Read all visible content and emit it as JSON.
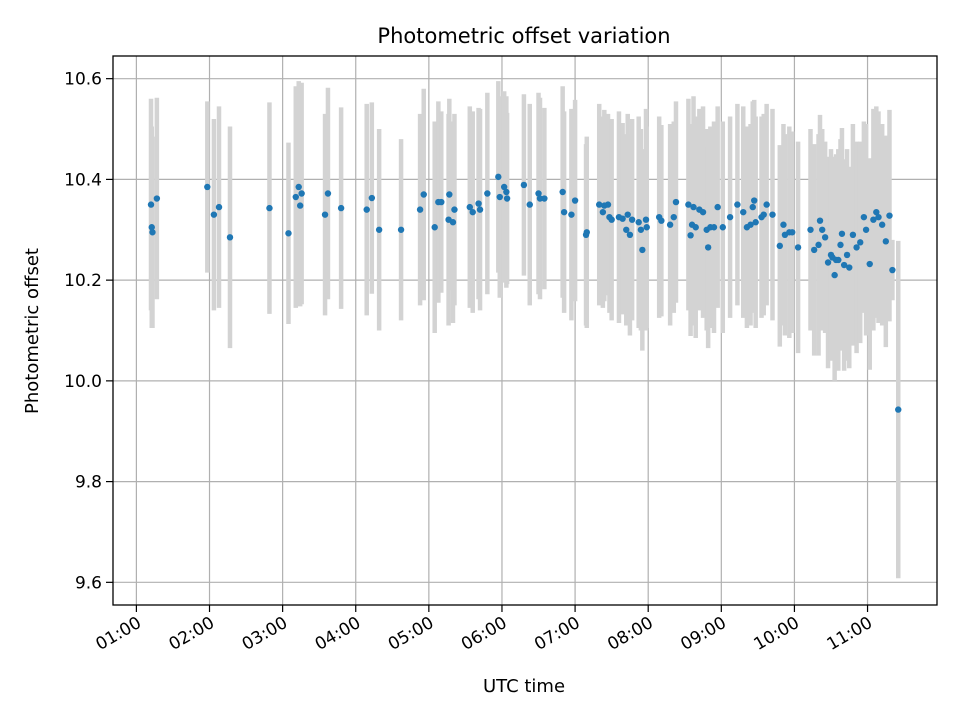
{
  "chart_data": {
    "type": "scatter",
    "title": "Photometric offset variation",
    "xlabel": "UTC time",
    "ylabel": "Photometric offset",
    "xlim": [
      0.68,
      11.95
    ],
    "ylim": [
      9.555,
      10.645
    ],
    "grid": true,
    "x_ticks": [
      {
        "value": 1,
        "label": "01:00"
      },
      {
        "value": 2,
        "label": "02:00"
      },
      {
        "value": 3,
        "label": "03:00"
      },
      {
        "value": 4,
        "label": "04:00"
      },
      {
        "value": 5,
        "label": "05:00"
      },
      {
        "value": 6,
        "label": "06:00"
      },
      {
        "value": 7,
        "label": "07:00"
      },
      {
        "value": 8,
        "label": "08:00"
      },
      {
        "value": 9,
        "label": "09:00"
      },
      {
        "value": 10,
        "label": "10:00"
      },
      {
        "value": 11,
        "label": "11:00"
      }
    ],
    "y_ticks": [
      {
        "value": 9.6,
        "label": "9.6"
      },
      {
        "value": 9.8,
        "label": "9.8"
      },
      {
        "value": 10.0,
        "label": "10.0"
      },
      {
        "value": 10.2,
        "label": "10.2"
      },
      {
        "value": 10.4,
        "label": "10.4"
      },
      {
        "value": 10.6,
        "label": "10.6"
      }
    ],
    "colors": {
      "points": "#1f77b4",
      "errorbars": "#d3d3d3",
      "grid": "#b0b0b0",
      "axes": "#000000"
    },
    "series": [
      {
        "name": "offset",
        "points": [
          [
            1.2,
            10.35,
            0.21
          ],
          [
            1.21,
            10.305,
            0.2
          ],
          [
            1.22,
            10.295,
            0.19
          ],
          [
            1.28,
            10.362,
            0.2
          ],
          [
            1.97,
            10.385,
            0.17
          ],
          [
            2.06,
            10.33,
            0.19
          ],
          [
            2.13,
            10.345,
            0.2
          ],
          [
            2.28,
            10.285,
            0.22
          ],
          [
            2.82,
            10.343,
            0.21
          ],
          [
            3.08,
            10.293,
            0.18
          ],
          [
            3.18,
            10.365,
            0.22
          ],
          [
            3.22,
            10.385,
            0.21
          ],
          [
            3.24,
            10.348,
            0.2
          ],
          [
            3.26,
            10.372,
            0.22
          ],
          [
            3.58,
            10.33,
            0.2
          ],
          [
            3.62,
            10.372,
            0.21
          ],
          [
            3.8,
            10.343,
            0.2
          ],
          [
            4.15,
            10.34,
            0.21
          ],
          [
            4.22,
            10.363,
            0.19
          ],
          [
            4.32,
            10.3,
            0.2
          ],
          [
            4.62,
            10.3,
            0.18
          ],
          [
            4.88,
            10.34,
            0.19
          ],
          [
            4.93,
            10.37,
            0.21
          ],
          [
            5.08,
            10.305,
            0.21
          ],
          [
            5.13,
            10.355,
            0.2
          ],
          [
            5.17,
            10.355,
            0.18
          ],
          [
            5.27,
            10.32,
            0.21
          ],
          [
            5.28,
            10.37,
            0.19
          ],
          [
            5.33,
            10.315,
            0.2
          ],
          [
            5.35,
            10.34,
            0.19
          ],
          [
            5.56,
            10.345,
            0.2
          ],
          [
            5.6,
            10.335,
            0.2
          ],
          [
            5.68,
            10.352,
            0.19
          ],
          [
            5.7,
            10.34,
            0.2
          ],
          [
            5.8,
            10.372,
            0.2
          ],
          [
            5.95,
            10.405,
            0.19
          ],
          [
            5.97,
            10.365,
            0.2
          ],
          [
            6.03,
            10.385,
            0.19
          ],
          [
            6.06,
            10.375,
            0.19
          ],
          [
            6.07,
            10.362,
            0.17
          ],
          [
            6.3,
            10.389,
            0.18
          ],
          [
            6.38,
            10.35,
            0.2
          ],
          [
            6.5,
            10.372,
            0.2
          ],
          [
            6.52,
            10.362,
            0.2
          ],
          [
            6.58,
            10.362,
            0.18
          ],
          [
            6.83,
            10.375,
            0.21
          ],
          [
            6.85,
            10.335,
            0.2
          ],
          [
            6.95,
            10.33,
            0.21
          ],
          [
            7.0,
            10.358,
            0.2
          ],
          [
            7.15,
            10.29,
            0.18
          ],
          [
            7.16,
            10.295,
            0.19
          ],
          [
            7.33,
            10.35,
            0.2
          ],
          [
            7.38,
            10.335,
            0.19
          ],
          [
            7.4,
            10.348,
            0.19
          ],
          [
            7.45,
            10.35,
            0.18
          ],
          [
            7.47,
            10.325,
            0.19
          ],
          [
            7.5,
            10.32,
            0.2
          ],
          [
            7.6,
            10.325,
            0.21
          ],
          [
            7.65,
            10.322,
            0.19
          ],
          [
            7.7,
            10.3,
            0.19
          ],
          [
            7.72,
            10.33,
            0.2
          ],
          [
            7.75,
            10.29,
            0.2
          ],
          [
            7.78,
            10.32,
            0.2
          ],
          [
            7.87,
            10.315,
            0.21
          ],
          [
            7.9,
            10.3,
            0.2
          ],
          [
            7.92,
            10.26,
            0.2
          ],
          [
            7.97,
            10.32,
            0.22
          ],
          [
            7.98,
            10.305,
            0.2
          ],
          [
            8.15,
            10.325,
            0.2
          ],
          [
            8.18,
            10.318,
            0.19
          ],
          [
            8.3,
            10.31,
            0.2
          ],
          [
            8.35,
            10.325,
            0.19
          ],
          [
            8.38,
            10.355,
            0.2
          ],
          [
            8.55,
            10.35,
            0.21
          ],
          [
            8.58,
            10.289,
            0.2
          ],
          [
            8.6,
            10.31,
            0.2
          ],
          [
            8.62,
            10.345,
            0.22
          ],
          [
            8.65,
            10.305,
            0.22
          ],
          [
            8.7,
            10.34,
            0.2
          ],
          [
            8.75,
            10.335,
            0.21
          ],
          [
            8.8,
            10.3,
            0.2
          ],
          [
            8.82,
            10.265,
            0.2
          ],
          [
            8.85,
            10.305,
            0.2
          ],
          [
            8.9,
            10.305,
            0.21
          ],
          [
            8.95,
            10.345,
            0.2
          ],
          [
            9.02,
            10.305,
            0.21
          ],
          [
            9.12,
            10.325,
            0.2
          ],
          [
            9.22,
            10.35,
            0.2
          ],
          [
            9.3,
            10.335,
            0.21
          ],
          [
            9.35,
            10.305,
            0.2
          ],
          [
            9.4,
            10.31,
            0.2
          ],
          [
            9.43,
            10.345,
            0.21
          ],
          [
            9.45,
            10.358,
            0.2
          ],
          [
            9.47,
            10.315,
            0.21
          ],
          [
            9.55,
            10.325,
            0.2
          ],
          [
            9.58,
            10.33,
            0.2
          ],
          [
            9.62,
            10.35,
            0.2
          ],
          [
            9.7,
            10.33,
            0.21
          ],
          [
            9.8,
            10.268,
            0.2
          ],
          [
            9.85,
            10.31,
            0.2
          ],
          [
            9.87,
            10.29,
            0.2
          ],
          [
            9.93,
            10.295,
            0.21
          ],
          [
            9.97,
            10.295,
            0.2
          ],
          [
            10.05,
            10.265,
            0.21
          ],
          [
            10.22,
            10.3,
            0.2
          ],
          [
            10.27,
            10.26,
            0.21
          ],
          [
            10.33,
            10.27,
            0.22
          ],
          [
            10.35,
            10.318,
            0.21
          ],
          [
            10.38,
            10.3,
            0.2
          ],
          [
            10.42,
            10.285,
            0.19
          ],
          [
            10.46,
            10.235,
            0.21
          ],
          [
            10.5,
            10.25,
            0.21
          ],
          [
            10.52,
            10.245,
            0.2
          ],
          [
            10.55,
            10.21,
            0.21
          ],
          [
            10.57,
            10.24,
            0.21
          ],
          [
            10.6,
            10.24,
            0.22
          ],
          [
            10.63,
            10.27,
            0.21
          ],
          [
            10.65,
            10.292,
            0.21
          ],
          [
            10.68,
            10.23,
            0.21
          ],
          [
            10.72,
            10.25,
            0.21
          ],
          [
            10.75,
            10.225,
            0.2
          ],
          [
            10.8,
            10.29,
            0.22
          ],
          [
            10.85,
            10.265,
            0.21
          ],
          [
            10.9,
            10.275,
            0.2
          ],
          [
            10.95,
            10.325,
            0.19
          ],
          [
            10.98,
            10.3,
            0.21
          ],
          [
            11.03,
            10.232,
            0.21
          ],
          [
            11.08,
            10.32,
            0.22
          ],
          [
            11.12,
            10.335,
            0.21
          ],
          [
            11.15,
            10.325,
            0.21
          ],
          [
            11.2,
            10.31,
            0.2
          ],
          [
            11.25,
            10.277,
            0.21
          ],
          [
            11.3,
            10.328,
            0.21
          ],
          [
            11.34,
            10.22,
            0.06
          ],
          [
            11.42,
            9.943,
            0.335
          ]
        ]
      }
    ]
  }
}
